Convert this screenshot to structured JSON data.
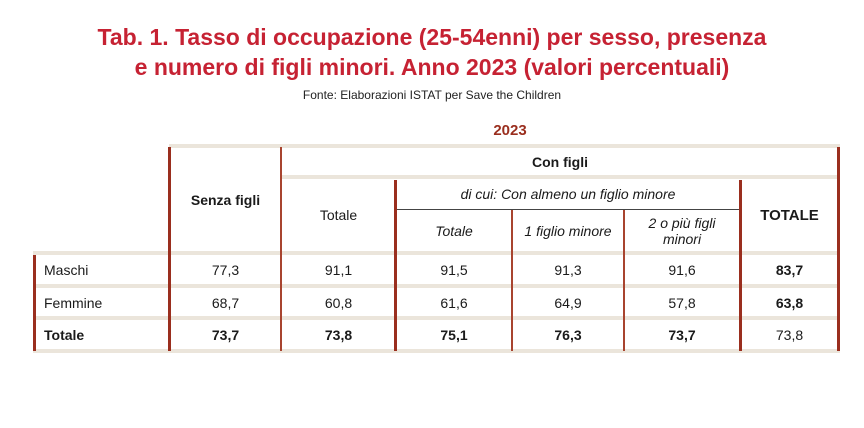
{
  "title_line1": "Tab. 1. Tasso di occupazione (25-54enni) per sesso, presenza",
  "title_line2": "e numero di figli minori. Anno 2023 (valori percentuali)",
  "source": "Fonte: Elaborazioni ISTAT per Save the Children",
  "year": "2023",
  "headers": {
    "senza_figli": "Senza figli",
    "con_figli": "Con figli",
    "totale": "Totale",
    "di_cui": "di cui: Con almeno un figlio minore",
    "sub_totale": "Totale",
    "uno_figlio": "1 figlio minore",
    "due_piu": "2 o più figli minori",
    "totale_all": "TOTALE"
  },
  "rows": [
    {
      "label": "Maschi",
      "values": [
        "77,3",
        "91,1",
        "91,5",
        "91,3",
        "91,6",
        "83,7"
      ]
    },
    {
      "label": "Femmine",
      "values": [
        "68,7",
        "60,8",
        "61,6",
        "64,9",
        "57,8",
        "63,8"
      ]
    },
    {
      "label": "Totale",
      "values": [
        "73,7",
        "73,8",
        "75,1",
        "76,3",
        "73,7",
        "73,8"
      ]
    }
  ],
  "colors": {
    "title": "#c62233",
    "accent": "#9a2e1e",
    "rule": "#ebe5db"
  }
}
